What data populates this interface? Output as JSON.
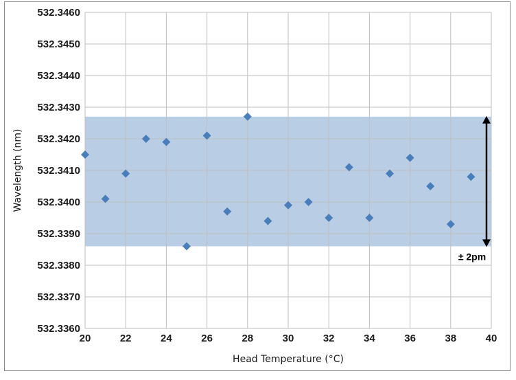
{
  "chart_data": {
    "type": "scatter",
    "title": "",
    "xlabel": "Head Temperature (°C)",
    "ylabel": "Wavelength (nm)",
    "xlim": [
      20,
      40
    ],
    "ylim": [
      532.336,
      532.346
    ],
    "x_ticks": [
      "20",
      "22",
      "24",
      "26",
      "28",
      "30",
      "32",
      "34",
      "36",
      "38",
      "40"
    ],
    "y_ticks": [
      "532.3360",
      "532.3370",
      "532.3380",
      "532.3390",
      "532.3400",
      "532.3410",
      "532.3420",
      "532.3430",
      "532.3440",
      "532.3450",
      "532.3460"
    ],
    "grid": true,
    "legend": "none",
    "marker": "diamond",
    "marker_color": "#4a7ebb",
    "band": {
      "y_from": 532.3386,
      "y_to": 532.3427,
      "color": "#b9cde5"
    },
    "annotation": {
      "text": "± 2pm",
      "arrow_from": 532.3427,
      "arrow_to": 532.3386
    },
    "series": [
      {
        "x": [
          20,
          21,
          22,
          23,
          24,
          25,
          26,
          27,
          28,
          29,
          30,
          31,
          32,
          33,
          34,
          35,
          36,
          37,
          38,
          39
        ],
        "y": [
          532.3415,
          532.3401,
          532.3409,
          532.342,
          532.3419,
          532.3386,
          532.3421,
          532.3397,
          532.3427,
          532.3394,
          532.3399,
          532.34,
          532.3395,
          532.3411,
          532.3395,
          532.3409,
          532.3414,
          532.3405,
          532.3393,
          532.3408
        ]
      }
    ]
  }
}
